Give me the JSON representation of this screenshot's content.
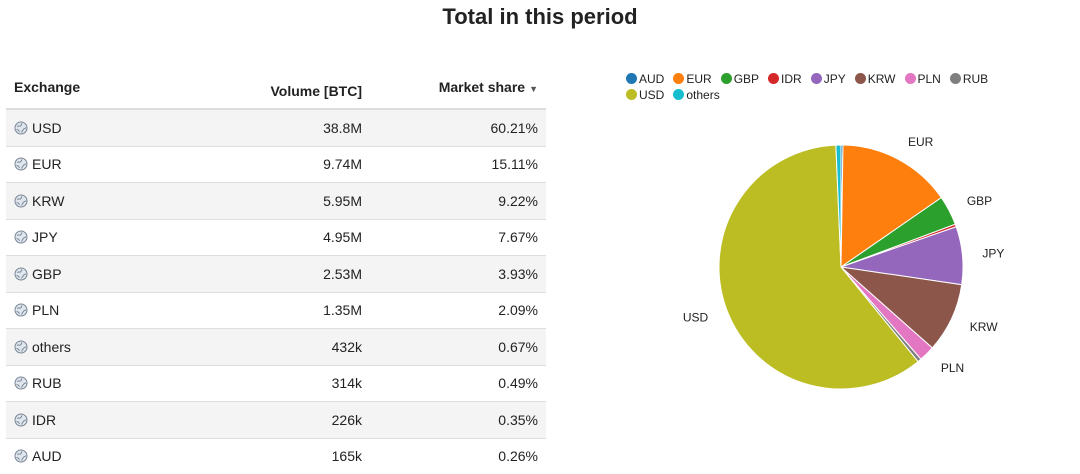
{
  "title": "Total in this period",
  "table": {
    "headers": {
      "exchange": "Exchange",
      "volume": "Volume [BTC]",
      "share": "Market share",
      "sort_indicator": "▼"
    },
    "rows": [
      {
        "exchange": "USD",
        "volume": "38.8M",
        "share": "60.21%"
      },
      {
        "exchange": "EUR",
        "volume": "9.74M",
        "share": "15.11%"
      },
      {
        "exchange": "KRW",
        "volume": "5.95M",
        "share": "9.22%"
      },
      {
        "exchange": "JPY",
        "volume": "4.95M",
        "share": "7.67%"
      },
      {
        "exchange": "GBP",
        "volume": "2.53M",
        "share": "3.93%"
      },
      {
        "exchange": "PLN",
        "volume": "1.35M",
        "share": "2.09%"
      },
      {
        "exchange": "others",
        "volume": "432k",
        "share": "0.67%"
      },
      {
        "exchange": "RUB",
        "volume": "314k",
        "share": "0.49%"
      },
      {
        "exchange": "IDR",
        "volume": "226k",
        "share": "0.35%"
      },
      {
        "exchange": "AUD",
        "volume": "165k",
        "share": "0.26%"
      }
    ]
  },
  "chart_data": {
    "type": "pie",
    "legend_position": "top",
    "legend": [
      {
        "name": "AUD",
        "color": "#1f77b4"
      },
      {
        "name": "EUR",
        "color": "#ff7f0e"
      },
      {
        "name": "GBP",
        "color": "#2ca02c"
      },
      {
        "name": "IDR",
        "color": "#d62728"
      },
      {
        "name": "JPY",
        "color": "#9467bd"
      },
      {
        "name": "KRW",
        "color": "#8c564b"
      },
      {
        "name": "PLN",
        "color": "#e377c2"
      },
      {
        "name": "RUB",
        "color": "#7f7f7f"
      },
      {
        "name": "USD",
        "color": "#bcbd22"
      },
      {
        "name": "others",
        "color": "#17becf"
      }
    ],
    "slices": [
      {
        "name": "AUD",
        "value": 0.26,
        "color": "#1f77b4",
        "show_label": false
      },
      {
        "name": "EUR",
        "value": 15.11,
        "color": "#ff7f0e",
        "show_label": true
      },
      {
        "name": "GBP",
        "value": 3.93,
        "color": "#2ca02c",
        "show_label": true
      },
      {
        "name": "IDR",
        "value": 0.35,
        "color": "#d62728",
        "show_label": false
      },
      {
        "name": "JPY",
        "value": 7.67,
        "color": "#9467bd",
        "show_label": true
      },
      {
        "name": "KRW",
        "value": 9.22,
        "color": "#8c564b",
        "show_label": true
      },
      {
        "name": "PLN",
        "value": 2.09,
        "color": "#e377c2",
        "show_label": true
      },
      {
        "name": "RUB",
        "value": 0.49,
        "color": "#7f7f7f",
        "show_label": false
      },
      {
        "name": "USD",
        "value": 60.21,
        "color": "#bcbd22",
        "show_label": true
      },
      {
        "name": "others",
        "value": 0.67,
        "color": "#17becf",
        "show_label": false
      }
    ]
  }
}
